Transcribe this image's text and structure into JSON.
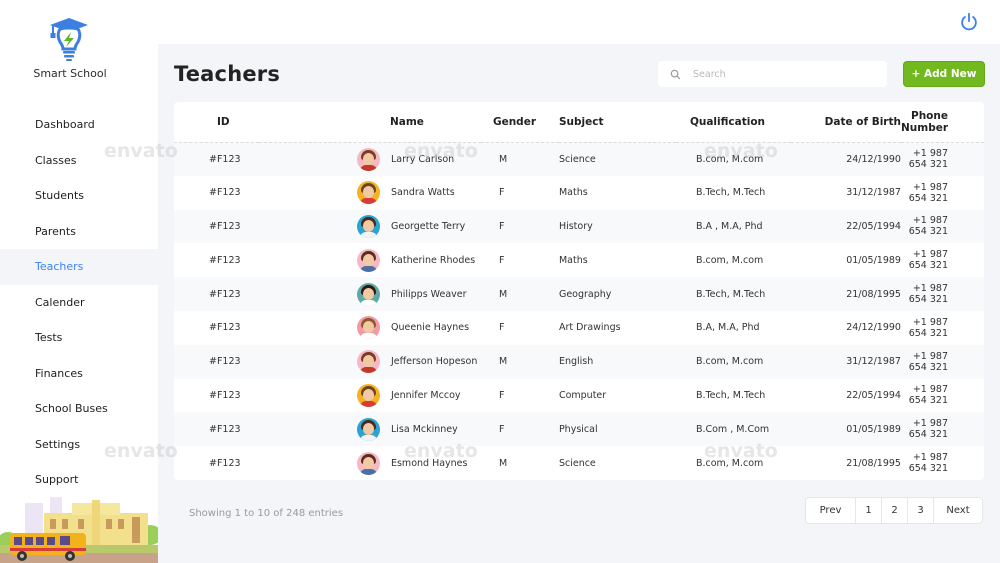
{
  "app": {
    "brand": "Smart School"
  },
  "sidebar": {
    "items": [
      {
        "label": "Dashboard",
        "active": false
      },
      {
        "label": "Classes",
        "active": false
      },
      {
        "label": "Students",
        "active": false
      },
      {
        "label": "Parents",
        "active": false
      },
      {
        "label": "Teachers",
        "active": true
      },
      {
        "label": "Calender",
        "active": false
      },
      {
        "label": "Tests",
        "active": false
      },
      {
        "label": "Finances",
        "active": false
      },
      {
        "label": "School Buses",
        "active": false
      },
      {
        "label": "Settings",
        "active": false
      },
      {
        "label": "Support",
        "active": false
      }
    ]
  },
  "header": {
    "power_icon": "power-icon"
  },
  "main": {
    "title": "Teachers",
    "search": {
      "placeholder": "Search",
      "value": ""
    },
    "add_button": "+ Add New"
  },
  "table": {
    "columns": [
      "ID",
      "Name",
      "Gender",
      "Subject",
      "Qualification",
      "Date of Birth",
      "Phone Number"
    ],
    "rows": [
      {
        "id": "#F123",
        "name": "Larry Carlson",
        "gender": "M",
        "subject": "Science",
        "qualification": "B.com, M.com",
        "dob": "24/12/1990",
        "phone": "+1 987 654 321"
      },
      {
        "id": "#F123",
        "name": "Sandra Watts",
        "gender": "F",
        "subject": "Maths",
        "qualification": "B.Tech, M.Tech",
        "dob": "31/12/1987",
        "phone": "+1 987 654 321"
      },
      {
        "id": "#F123",
        "name": "Georgette Terry",
        "gender": "F",
        "subject": "History",
        "qualification": "B.A , M.A, Phd",
        "dob": "22/05/1994",
        "phone": "+1 987 654 321"
      },
      {
        "id": "#F123",
        "name": "Katherine Rhodes",
        "gender": "F",
        "subject": "Maths",
        "qualification": "B.com, M.com",
        "dob": "01/05/1989",
        "phone": "+1 987 654 321"
      },
      {
        "id": "#F123",
        "name": "Philipps Weaver",
        "gender": "M",
        "subject": "Geography",
        "qualification": "B.Tech, M.Tech",
        "dob": "21/08/1995",
        "phone": "+1 987 654 321"
      },
      {
        "id": "#F123",
        "name": "Queenie Haynes",
        "gender": "F",
        "subject": "Art Drawings",
        "qualification": "B.A, M.A, Phd",
        "dob": "24/12/1990",
        "phone": "+1 987 654 321"
      },
      {
        "id": "#F123",
        "name": "Jefferson Hopeson",
        "gender": "M",
        "subject": "English",
        "qualification": "B.com, M.com",
        "dob": "31/12/1987",
        "phone": "+1 987 654 321"
      },
      {
        "id": "#F123",
        "name": "Jennifer Mccoy",
        "gender": "F",
        "subject": "Computer",
        "qualification": "B.Tech, M.Tech",
        "dob": "22/05/1994",
        "phone": "+1 987 654 321"
      },
      {
        "id": "#F123",
        "name": "Lisa Mckinney",
        "gender": "F",
        "subject": "Physical",
        "qualification": "B.Com , M.Com",
        "dob": "01/05/1989",
        "phone": "+1 987 654 321"
      },
      {
        "id": "#F123",
        "name": "Esmond Haynes",
        "gender": "M",
        "subject": "Science",
        "qualification": "B.com, M.com",
        "dob": "21/08/1995",
        "phone": "+1 987 654 321"
      }
    ]
  },
  "avatars": [
    {
      "bg": "#f6b8c4",
      "hair": "#7a3d22",
      "shirt": "#c0392b"
    },
    {
      "bg": "#f5b323",
      "hair": "#6b4423",
      "shirt": "#d93b3b"
    },
    {
      "bg": "#2aa3d4",
      "hair": "#4a2a18",
      "shirt": "#f3f3f3"
    },
    {
      "bg": "#f6b8c4",
      "hair": "#5b2d1a",
      "shirt": "#4a6fa5"
    },
    {
      "bg": "#5fa8a8",
      "hair": "#2b1a10",
      "shirt": "#ffffff"
    },
    {
      "bg": "#f29aa6",
      "hair": "#8c5a2e",
      "shirt": "#ffffff"
    },
    {
      "bg": "#f6b8c4",
      "hair": "#7a3d22",
      "shirt": "#c0392b"
    },
    {
      "bg": "#f5b323",
      "hair": "#6b4423",
      "shirt": "#d93b3b"
    },
    {
      "bg": "#2aa3d4",
      "hair": "#4a2a18",
      "shirt": "#f3f3f3"
    },
    {
      "bg": "#f6b8c4",
      "hair": "#5b2d1a",
      "shirt": "#4a6fa5"
    }
  ],
  "footer": {
    "info": "Showing 1 to 10 of 248 entries",
    "pagination": {
      "prev": "Prev",
      "pages": [
        "1",
        "2",
        "3"
      ],
      "next": "Next"
    }
  },
  "colors": {
    "accent": "#3b82f6",
    "primary_button": "#72b81f",
    "background": "#f4f5f8"
  },
  "watermark": "envato"
}
